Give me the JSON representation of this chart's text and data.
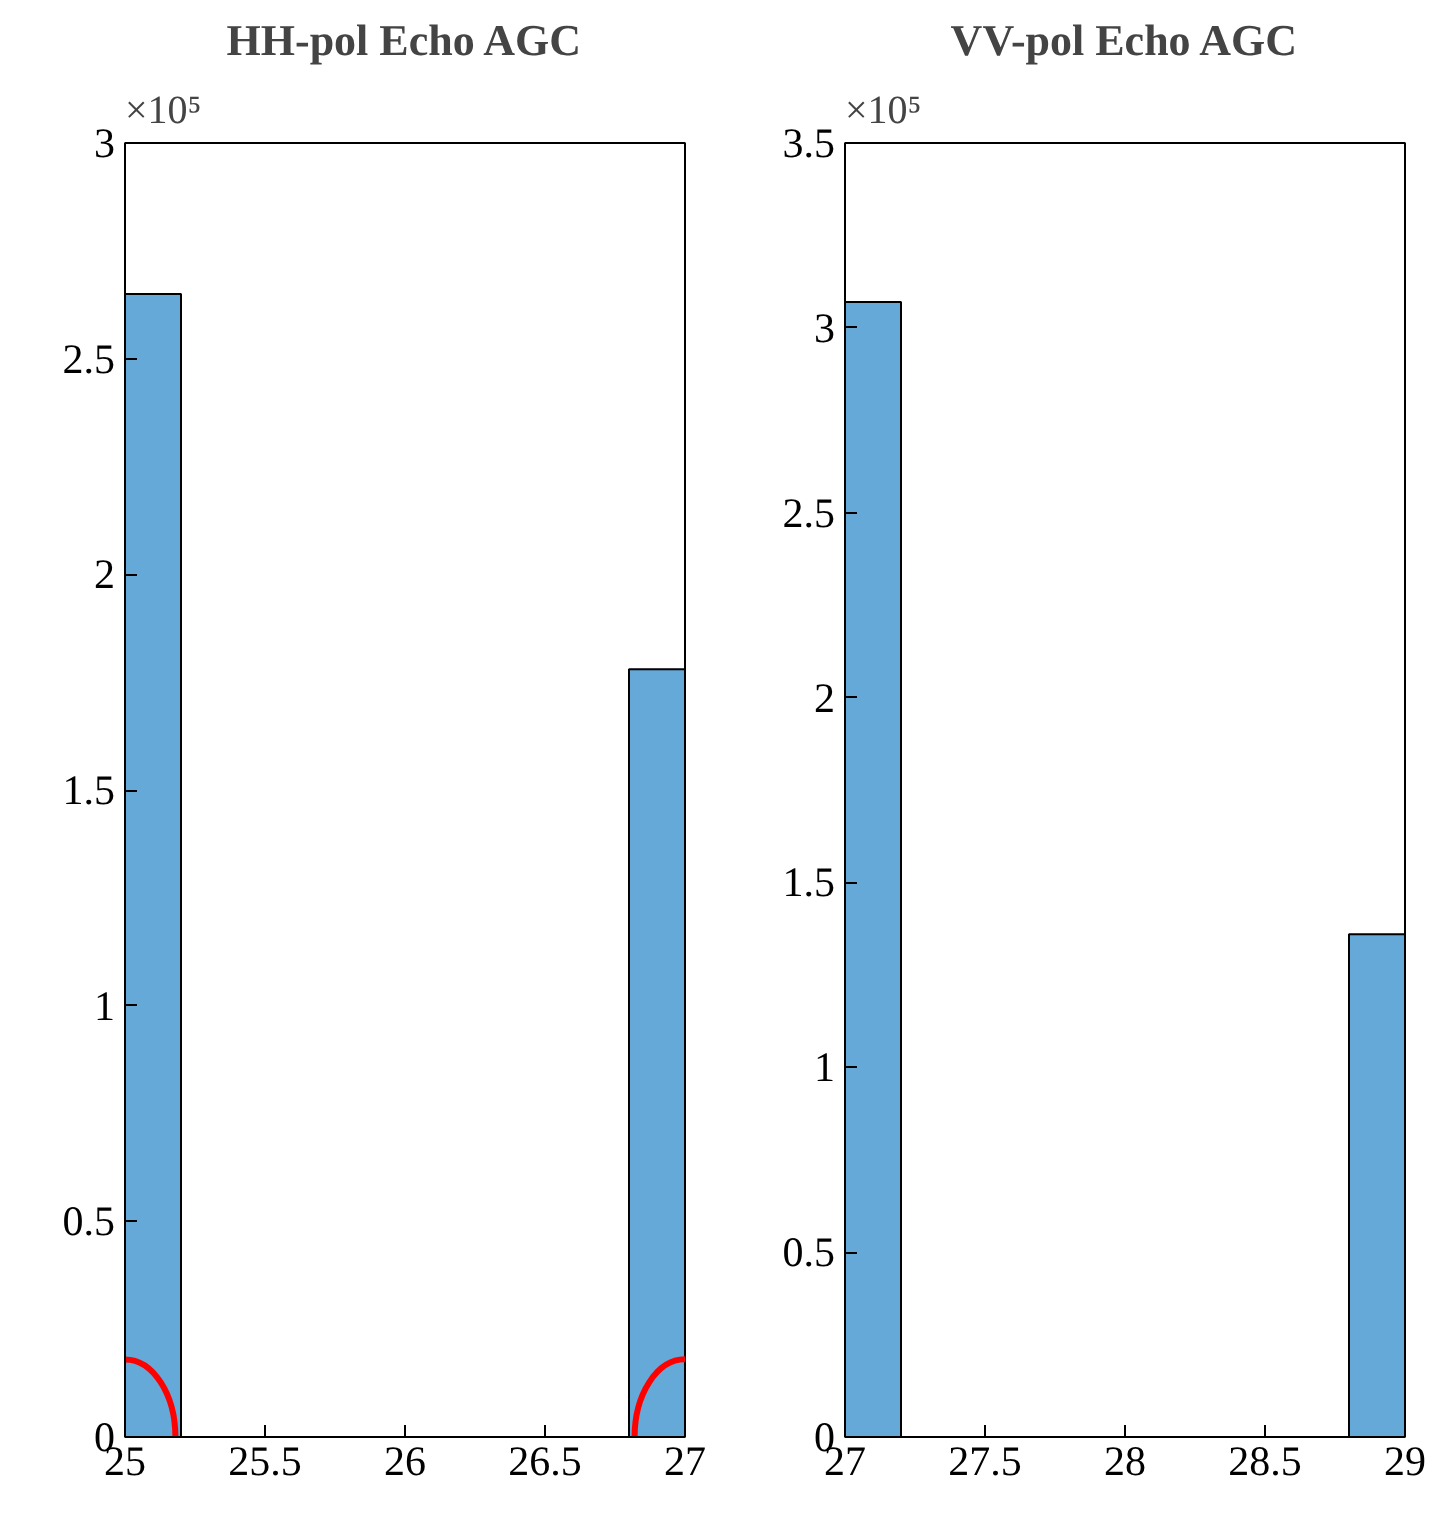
{
  "chart_data": [
    {
      "type": "histogram",
      "title": "HH-pol Echo AGC",
      "annotations": [
        "×10⁵"
      ],
      "bins": [
        25,
        25.2,
        25.4,
        25.6,
        25.8,
        26,
        26.2,
        26.4,
        26.6,
        26.8,
        27
      ],
      "values": [
        2.65,
        0,
        0,
        0,
        0,
        0,
        0,
        0,
        0,
        1.78
      ],
      "color": "#64a9d7",
      "xlim": [
        25,
        27
      ],
      "xticks": [
        25,
        25.5,
        26,
        26.5,
        27
      ],
      "ylim": [
        0,
        3
      ],
      "yticks": [
        0,
        0.5,
        1,
        1.5,
        2,
        2.5,
        3
      ],
      "grid": false
    },
    {
      "type": "histogram",
      "title": "VV-pol Echo AGC",
      "annotations": [
        "×10⁵"
      ],
      "bins": [
        27,
        27.2,
        27.4,
        27.6,
        27.8,
        28,
        28.2,
        28.4,
        28.6,
        28.8,
        29
      ],
      "values": [
        3.07,
        0,
        0,
        0,
        0,
        0,
        0,
        0,
        0,
        1.36
      ],
      "color": "#64a9d7",
      "xlim": [
        27,
        29
      ],
      "xticks": [
        27,
        27.5,
        28,
        28.5,
        29
      ],
      "ylim": [
        0,
        3.5
      ],
      "yticks": [
        0,
        0.5,
        1,
        1.5,
        2,
        2.5,
        3,
        3.5
      ],
      "grid": false
    }
  ]
}
